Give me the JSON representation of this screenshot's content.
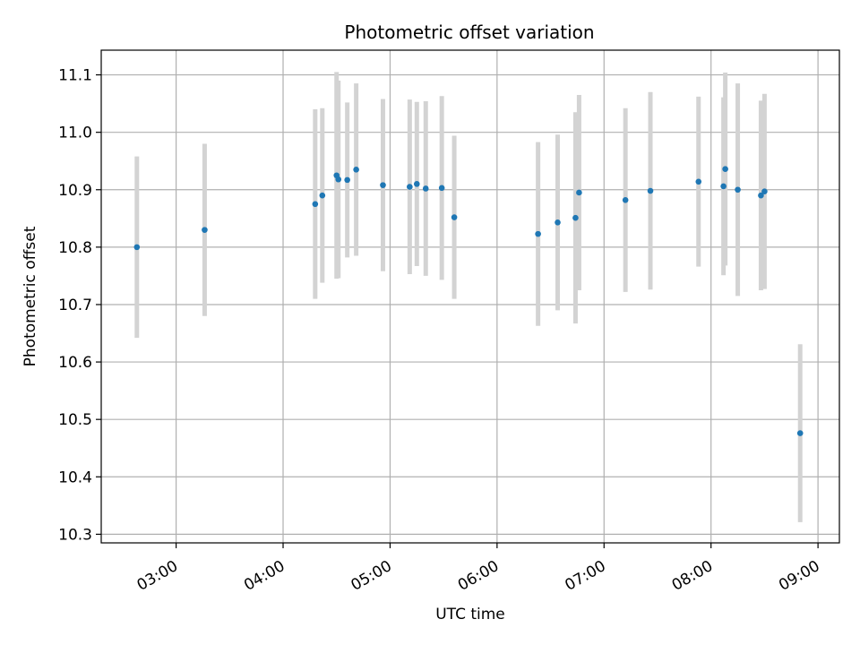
{
  "chart_data": {
    "type": "scatter",
    "title": "Photometric offset variation",
    "xlabel": "UTC time",
    "ylabel": "Photometric offset",
    "xlim": [
      "02:18",
      "09:12"
    ],
    "ylim": [
      10.285,
      11.143
    ],
    "x_ticks": [
      "03:00",
      "04:00",
      "05:00",
      "06:00",
      "07:00",
      "08:00",
      "09:00"
    ],
    "y_ticks": [
      10.3,
      10.4,
      10.5,
      10.6,
      10.7,
      10.8,
      10.9,
      11.0,
      11.1
    ],
    "y_tick_labels": [
      "10.3",
      "10.4",
      "10.5",
      "10.6",
      "10.7",
      "10.8",
      "10.9",
      "11.0",
      "11.1"
    ],
    "grid": true,
    "colors": {
      "points": "#1f77b4",
      "errorbars": "#d3d3d3",
      "grid": "#b0b0b0"
    },
    "points": [
      {
        "x": "02:38",
        "y": 10.8,
        "yerr": 0.158
      },
      {
        "x": "03:16",
        "y": 10.83,
        "yerr": 0.15
      },
      {
        "x": "04:18",
        "y": 10.875,
        "yerr": 0.165
      },
      {
        "x": "04:22",
        "y": 10.89,
        "yerr": 0.152
      },
      {
        "x": "04:30",
        "y": 10.925,
        "yerr": 0.18
      },
      {
        "x": "04:31",
        "y": 10.918,
        "yerr": 0.172
      },
      {
        "x": "04:36",
        "y": 10.917,
        "yerr": 0.135
      },
      {
        "x": "04:41",
        "y": 10.935,
        "yerr": 0.15
      },
      {
        "x": "04:56",
        "y": 10.908,
        "yerr": 0.15
      },
      {
        "x": "05:11",
        "y": 10.905,
        "yerr": 0.152
      },
      {
        "x": "05:15",
        "y": 10.91,
        "yerr": 0.143
      },
      {
        "x": "05:20",
        "y": 10.902,
        "yerr": 0.152
      },
      {
        "x": "05:29",
        "y": 10.903,
        "yerr": 0.16
      },
      {
        "x": "05:36",
        "y": 10.852,
        "yerr": 0.142
      },
      {
        "x": "06:23",
        "y": 10.823,
        "yerr": 0.16
      },
      {
        "x": "06:34",
        "y": 10.843,
        "yerr": 0.153
      },
      {
        "x": "06:44",
        "y": 10.851,
        "yerr": 0.184
      },
      {
        "x": "06:46",
        "y": 10.895,
        "yerr": 0.17
      },
      {
        "x": "07:12",
        "y": 10.882,
        "yerr": 0.16
      },
      {
        "x": "07:26",
        "y": 10.898,
        "yerr": 0.172
      },
      {
        "x": "07:53",
        "y": 10.914,
        "yerr": 0.148
      },
      {
        "x": "08:07",
        "y": 10.906,
        "yerr": 0.155
      },
      {
        "x": "08:08",
        "y": 10.936,
        "yerr": 0.168
      },
      {
        "x": "08:15",
        "y": 10.9,
        "yerr": 0.185
      },
      {
        "x": "08:28",
        "y": 10.89,
        "yerr": 0.165
      },
      {
        "x": "08:30",
        "y": 10.897,
        "yerr": 0.17
      },
      {
        "x": "08:50",
        "y": 10.476,
        "yerr": 0.155
      }
    ]
  }
}
